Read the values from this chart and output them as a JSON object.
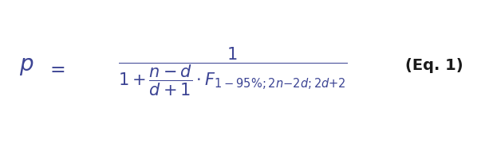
{
  "background_color": "#ffffff",
  "text_color": "#3c4494",
  "eq_label_color": "#1a1a1a",
  "eq_label": "(Eq. 1)",
  "eq_label_fontsize": 14,
  "eq_label_bold": true,
  "formula_fontsize": 15,
  "figsize": [
    6.08,
    1.8
  ],
  "dpi": 100
}
